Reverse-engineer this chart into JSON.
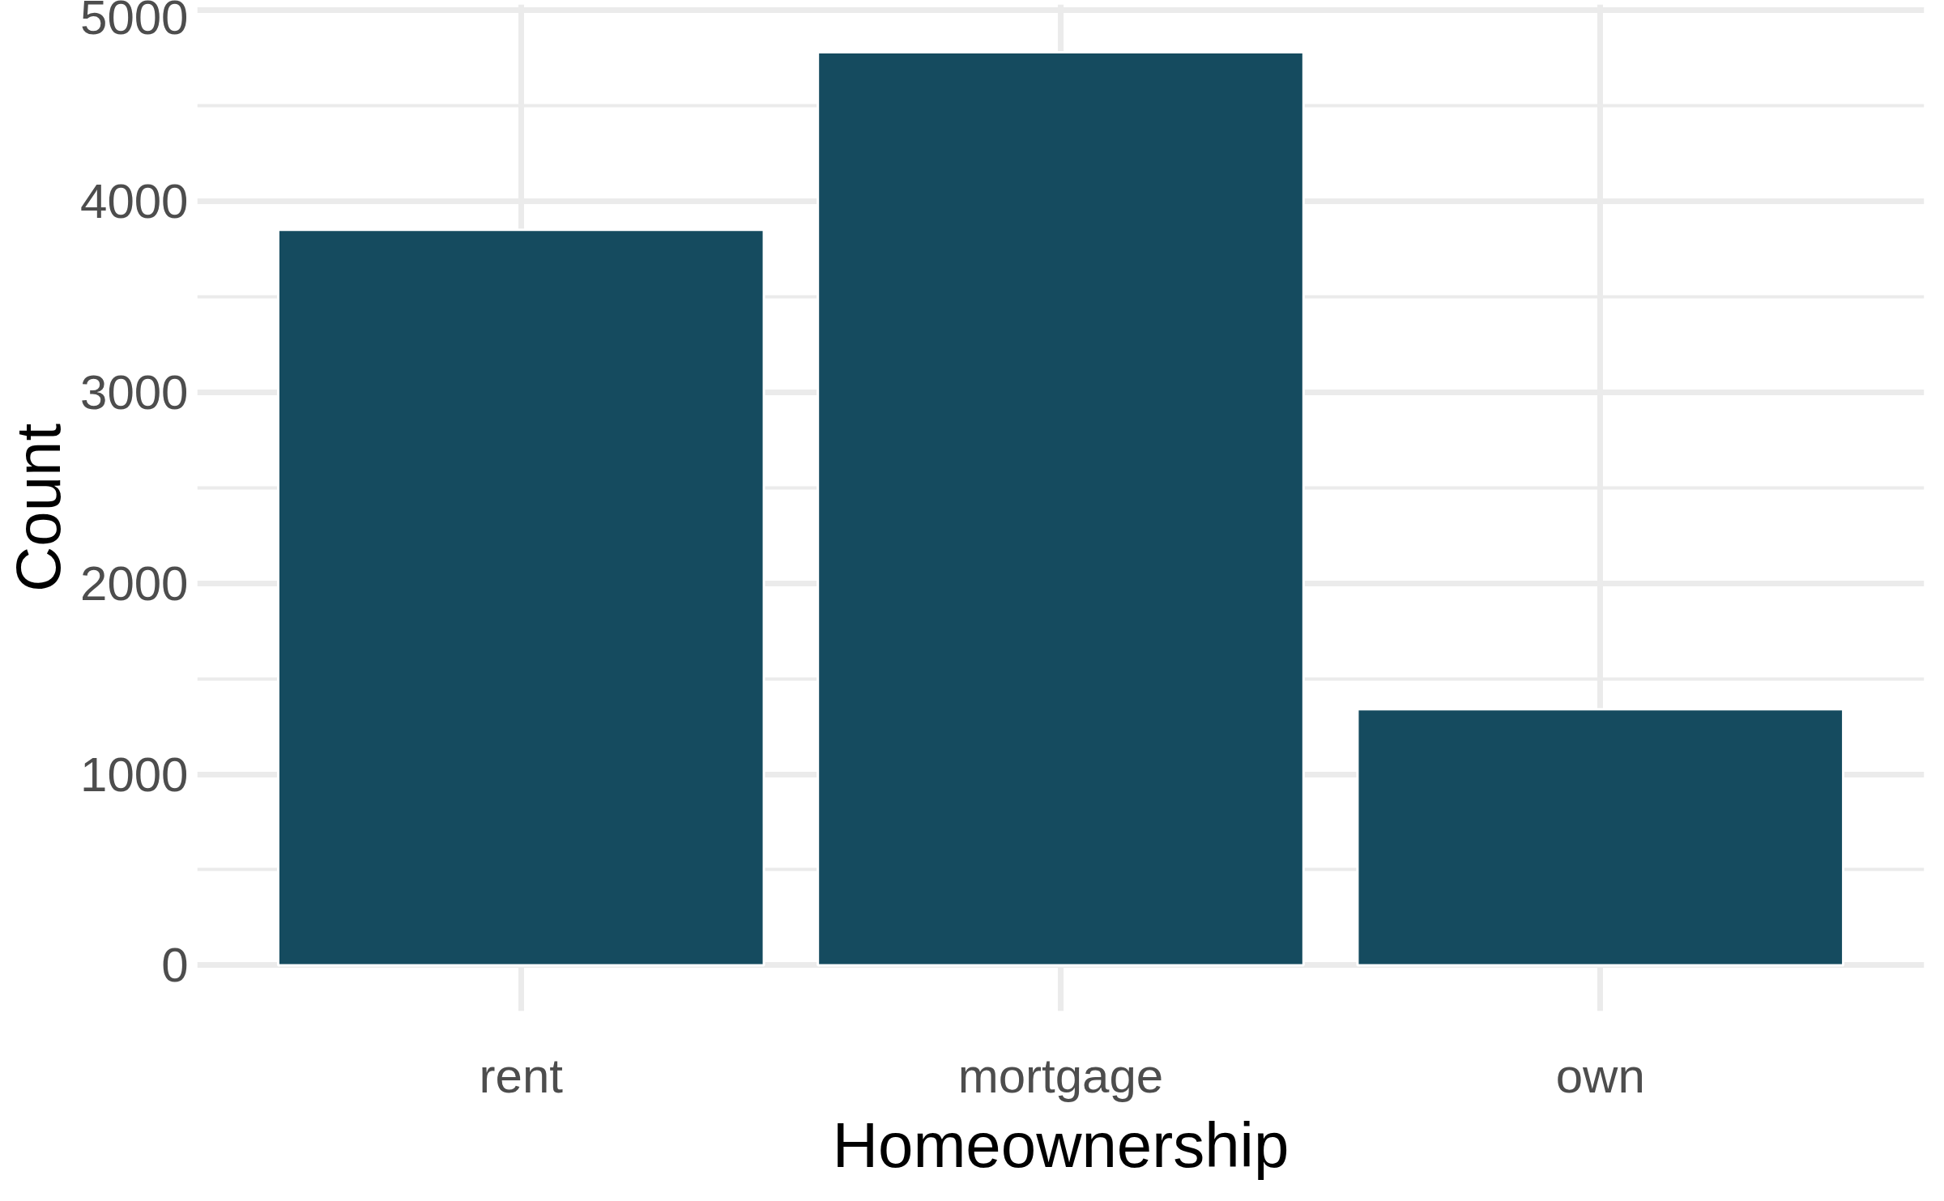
{
  "chart_data": {
    "type": "bar",
    "xlabel": "Homeownership",
    "ylabel": "Count",
    "categories": [
      "rent",
      "mortgage",
      "own"
    ],
    "values": [
      3850,
      4780,
      1340
    ],
    "color": "#154b5f",
    "ylim": [
      -240,
      5030
    ],
    "yticks": [
      0,
      1000,
      2000,
      3000,
      4000,
      5000
    ],
    "grid": true
  }
}
